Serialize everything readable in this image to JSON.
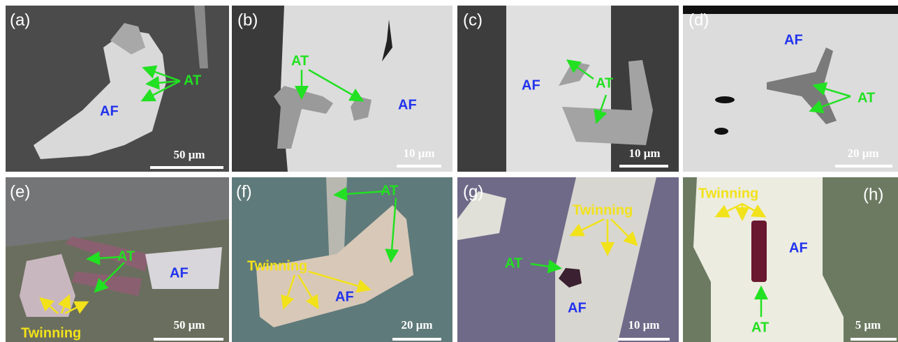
{
  "panels": [
    {
      "label": "(a)",
      "scale": "50 μm",
      "texts": [
        "AT",
        "AF"
      ]
    },
    {
      "label": "(b)",
      "scale": "10 μm",
      "texts": [
        "AT",
        "AF"
      ]
    },
    {
      "label": "(c)",
      "scale": "10 μm",
      "texts": [
        "AF",
        "AT"
      ]
    },
    {
      "label": "(d)",
      "scale": "20 μm",
      "texts": [
        "AF",
        "AT"
      ]
    },
    {
      "label": "(e)",
      "scale": "50 μm",
      "texts": [
        "AT",
        "AF",
        "Twinning"
      ]
    },
    {
      "label": "(f)",
      "scale": "20 μm",
      "texts": [
        "AT",
        "Twinning",
        "AF"
      ]
    },
    {
      "label": "(g)",
      "scale": "10 μm",
      "texts": [
        "Twinning",
        "AT",
        "AF"
      ]
    },
    {
      "label": "(h)",
      "scale": "5 μm",
      "texts": [
        "Twinning",
        "AF",
        "AT"
      ]
    }
  ]
}
